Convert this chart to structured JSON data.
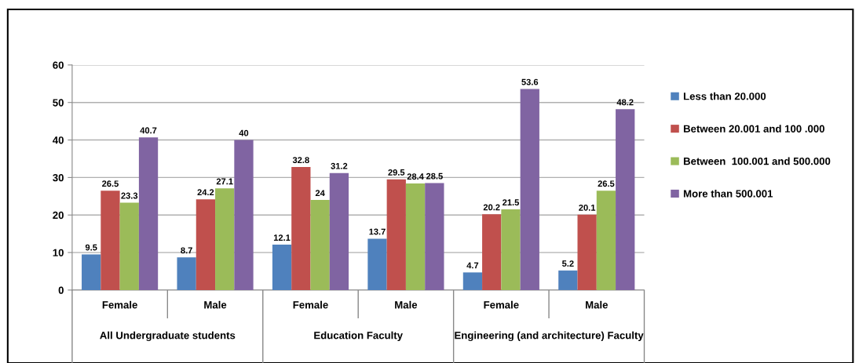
{
  "chart_data": {
    "type": "bar",
    "categories": [
      "Female",
      "Male",
      "Female",
      "Male",
      "Female",
      "Male"
    ],
    "annotations": [
      "All Undergraduate students",
      "Education Faculty",
      "Engineering (and architecture) Faculty"
    ],
    "series": [
      {
        "name": "Less than 20.000",
        "color": "#4f81bd",
        "values": [
          9.5,
          8.7,
          12.1,
          13.7,
          4.7,
          5.2
        ]
      },
      {
        "name": "Between 20.001 and 100 .000",
        "color": "#c0504d",
        "values": [
          26.5,
          24.2,
          32.8,
          29.5,
          20.2,
          20.1
        ]
      },
      {
        "name": "Between  100.001 and 500.000",
        "color": "#9bbb59",
        "values": [
          23.3,
          27.1,
          24,
          28.4,
          21.5,
          26.5
        ]
      },
      {
        "name": "More than 500.001",
        "color": "#8064a2",
        "values": [
          40.7,
          40,
          31.2,
          28.5,
          53.6,
          48.2
        ]
      }
    ],
    "ylim": [
      0,
      60
    ],
    "yticks": [
      0,
      10,
      20,
      30,
      40,
      50,
      60
    ],
    "grid": "y",
    "legend": "right",
    "data_labels": true
  }
}
